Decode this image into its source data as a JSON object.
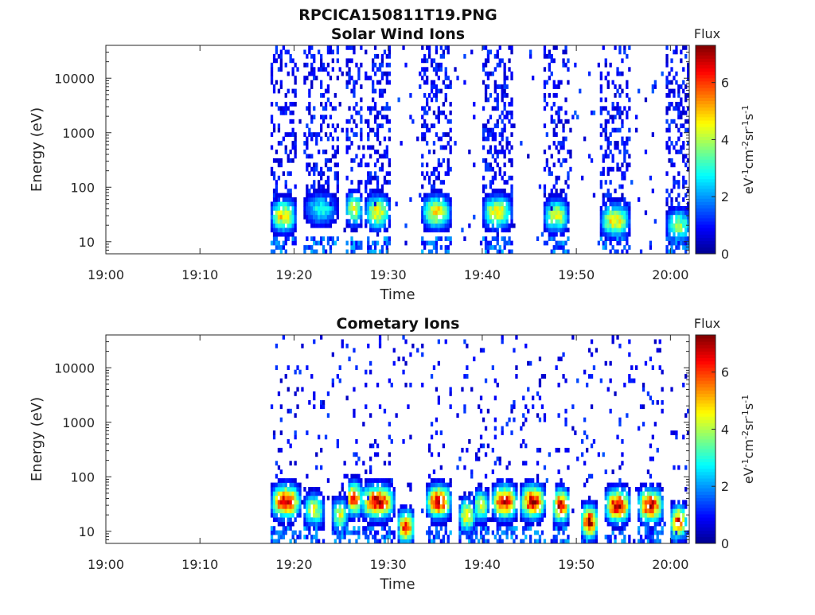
{
  "figure_title": "RPCICA150811T19.PNG",
  "colors": {
    "colormap": [
      "#00008f",
      "#0000ff",
      "#007fff",
      "#00ffff",
      "#7fff7f",
      "#ffff00",
      "#ff7f00",
      "#ff0000",
      "#7f0000"
    ],
    "axis": "#262626",
    "background": "#ffffff"
  },
  "chart_data": [
    {
      "type": "heatmap",
      "title": "Solar Wind Ions",
      "xlabel": "Time",
      "ylabel": "Energy (eV)",
      "x_tick_labels": [
        "19:00",
        "19:10",
        "19:20",
        "19:30",
        "19:40",
        "19:50",
        "20:00"
      ],
      "x_tick_minutes": [
        0,
        10,
        20,
        30,
        40,
        50,
        60
      ],
      "xlim_minutes": [
        0,
        62
      ],
      "y_scale": "log",
      "y_tick_labels": [
        "10",
        "100",
        "1000",
        "10000"
      ],
      "y_tick_values": [
        10,
        100,
        1000,
        10000
      ],
      "ylim": [
        6,
        40000
      ],
      "colorbar": {
        "title": "Flux",
        "label": "eV-1cm-2sr-1s-1",
        "ticks": [
          "0",
          "2",
          "4",
          "6"
        ],
        "tick_values": [
          0,
          2,
          4,
          6
        ],
        "range": [
          0,
          7.3
        ]
      },
      "data_start_minute": 17.5,
      "bursts": [
        {
          "start": 17.5,
          "end": 20.0,
          "peak_energy_eV": 30,
          "peak_flux": 5.0
        },
        {
          "start": 21.0,
          "end": 24.5,
          "peak_energy_eV": 40,
          "peak_flux": 3.0
        },
        {
          "start": 25.5,
          "end": 27.0,
          "peak_energy_eV": 40,
          "peak_flux": 4.5
        },
        {
          "start": 27.5,
          "end": 30.0,
          "peak_energy_eV": 35,
          "peak_flux": 5.0
        },
        {
          "start": 33.5,
          "end": 36.5,
          "peak_energy_eV": 35,
          "peak_flux": 5.0
        },
        {
          "start": 40.0,
          "end": 43.0,
          "peak_energy_eV": 35,
          "peak_flux": 5.0
        },
        {
          "start": 46.5,
          "end": 49.0,
          "peak_energy_eV": 30,
          "peak_flux": 4.5
        },
        {
          "start": 52.5,
          "end": 55.5,
          "peak_energy_eV": 25,
          "peak_flux": 5.0
        },
        {
          "start": 59.5,
          "end": 62.0,
          "peak_energy_eV": 20,
          "peak_flux": 4.0
        }
      ]
    },
    {
      "type": "heatmap",
      "title": "Cometary Ions",
      "xlabel": "Time",
      "ylabel": "Energy (eV)",
      "x_tick_labels": [
        "19:00",
        "19:10",
        "19:20",
        "19:30",
        "19:40",
        "19:50",
        "20:00"
      ],
      "x_tick_minutes": [
        0,
        10,
        20,
        30,
        40,
        50,
        60
      ],
      "xlim_minutes": [
        0,
        62
      ],
      "y_scale": "log",
      "y_tick_labels": [
        "10",
        "100",
        "1000",
        "10000"
      ],
      "y_tick_values": [
        10,
        100,
        1000,
        10000
      ],
      "ylim": [
        6,
        40000
      ],
      "colorbar": {
        "title": "Flux",
        "label": "eV-1cm-2sr-1s-1",
        "ticks": [
          "0",
          "2",
          "4",
          "6"
        ],
        "tick_values": [
          0,
          2,
          4,
          6
        ],
        "range": [
          0,
          7.3
        ]
      },
      "data_start_minute": 17.5,
      "bursts": [
        {
          "start": 17.5,
          "end": 20.5,
          "peak_energy_eV": 35,
          "peak_flux": 7.0
        },
        {
          "start": 21.0,
          "end": 23.0,
          "peak_energy_eV": 25,
          "peak_flux": 4.5
        },
        {
          "start": 24.0,
          "end": 25.5,
          "peak_energy_eV": 20,
          "peak_flux": 4.5
        },
        {
          "start": 25.5,
          "end": 27.0,
          "peak_energy_eV": 40,
          "peak_flux": 6.5
        },
        {
          "start": 27.0,
          "end": 30.5,
          "peak_energy_eV": 35,
          "peak_flux": 7.0
        },
        {
          "start": 31.0,
          "end": 32.5,
          "peak_energy_eV": 12,
          "peak_flux": 6.5
        },
        {
          "start": 34.0,
          "end": 36.5,
          "peak_energy_eV": 35,
          "peak_flux": 7.0
        },
        {
          "start": 37.5,
          "end": 39.0,
          "peak_energy_eV": 20,
          "peak_flux": 5.0
        },
        {
          "start": 39.0,
          "end": 40.5,
          "peak_energy_eV": 30,
          "peak_flux": 4.5
        },
        {
          "start": 41.0,
          "end": 43.5,
          "peak_energy_eV": 35,
          "peak_flux": 7.0
        },
        {
          "start": 44.0,
          "end": 46.5,
          "peak_energy_eV": 35,
          "peak_flux": 7.0
        },
        {
          "start": 47.5,
          "end": 49.0,
          "peak_energy_eV": 30,
          "peak_flux": 7.0
        },
        {
          "start": 50.5,
          "end": 52.0,
          "peak_energy_eV": 15,
          "peak_flux": 7.0
        },
        {
          "start": 53.0,
          "end": 55.5,
          "peak_energy_eV": 30,
          "peak_flux": 7.0
        },
        {
          "start": 56.5,
          "end": 59.0,
          "peak_energy_eV": 30,
          "peak_flux": 7.0
        },
        {
          "start": 60.0,
          "end": 61.5,
          "peak_energy_eV": 15,
          "peak_flux": 6.5
        }
      ]
    }
  ]
}
